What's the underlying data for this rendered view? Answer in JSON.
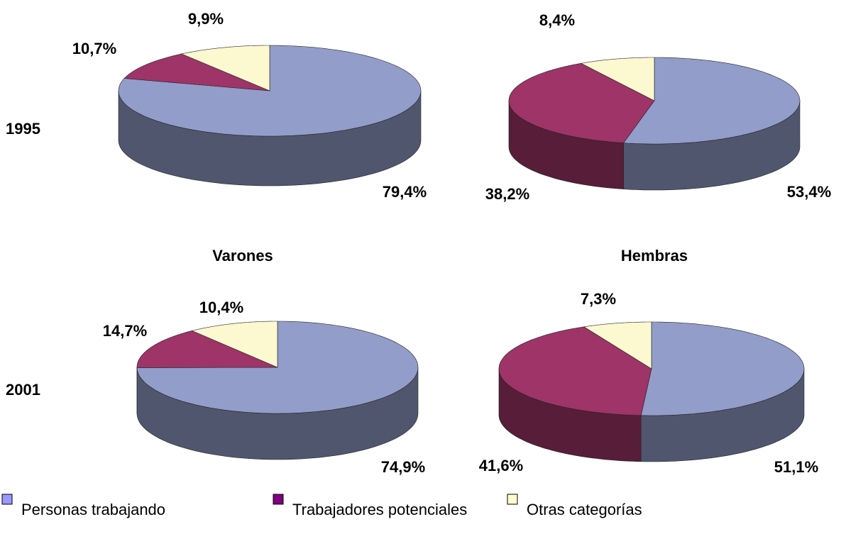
{
  "rows": [
    "1995",
    "2001"
  ],
  "columns": [
    "Varones",
    "Hembras"
  ],
  "legend": {
    "categories": [
      "Personas trabajando",
      "Trabajadores potenciales",
      "Otras categorías"
    ],
    "colors": [
      "#9999ff",
      "#800080",
      "#ffffcc"
    ]
  },
  "chart_data": [
    {
      "type": "pie",
      "values": [
        79.4,
        10.7,
        9.9
      ],
      "value_labels": [
        "79,4%",
        "10,7%",
        "9,9%"
      ],
      "colors": [
        "#939dca",
        "#9e3467",
        "#fcf8d0"
      ]
    },
    {
      "type": "pie",
      "values": [
        53.4,
        38.2,
        8.4
      ],
      "value_labels": [
        "53,4%",
        "38,2%",
        "8,4%"
      ],
      "colors": [
        "#939dca",
        "#9e3467",
        "#fcf8d0"
      ]
    },
    {
      "type": "pie",
      "values": [
        74.9,
        14.7,
        10.4
      ],
      "value_labels": [
        "74,9%",
        "14,7%",
        "10,4%"
      ],
      "colors": [
        "#939dca",
        "#9e3467",
        "#fcf8d0"
      ]
    },
    {
      "type": "pie",
      "values": [
        51.1,
        41.6,
        7.3
      ],
      "value_labels": [
        "51,1%",
        "41,6%",
        "7,3%"
      ],
      "colors": [
        "#939dca",
        "#9e3467",
        "#fcf8d0"
      ]
    }
  ]
}
